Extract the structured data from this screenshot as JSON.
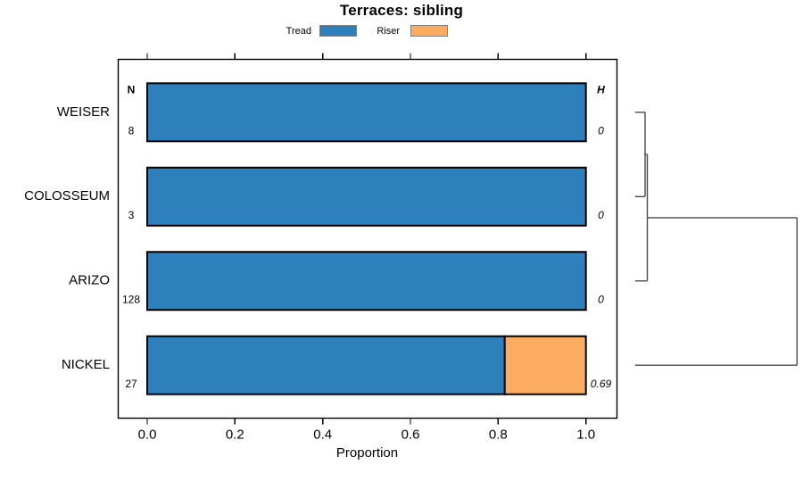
{
  "title": "Terraces: sibling",
  "legend": {
    "items": [
      {
        "label": "Tread",
        "color": "#2E80BC"
      },
      {
        "label": "Riser",
        "color": "#FBAC61"
      }
    ]
  },
  "chart_data": {
    "type": "bar",
    "orientation": "horizontal",
    "stacked": true,
    "title": "Terraces: sibling",
    "xlabel": "Proportion",
    "xlim": [
      0.0,
      1.0
    ],
    "x_ticks": [
      0.0,
      0.2,
      0.4,
      0.6,
      0.8,
      1.0
    ],
    "grid": "off",
    "legend_position": "top",
    "categories": [
      "WEISER",
      "COLOSSEUM",
      "ARIZO",
      "NICKEL"
    ],
    "series": [
      {
        "name": "Tread",
        "color": "#2E80BC",
        "values": [
          1.0,
          1.0,
          1.0,
          0.815
        ]
      },
      {
        "name": "Riser",
        "color": "#FBAC61",
        "values": [
          0.0,
          0.0,
          0.0,
          0.185
        ]
      }
    ],
    "n_label": "N",
    "n_values": [
      "8",
      "3",
      "128",
      "27"
    ],
    "h_label": "H",
    "h_values": [
      "0",
      "0",
      "0",
      "0.69"
    ],
    "dendrogram": {
      "side": "right",
      "leaf_order": [
        "WEISER",
        "COLOSSEUM",
        "ARIZO",
        "NICKEL"
      ],
      "merges": [
        {
          "children": [
            [
              "leaf",
              0
            ],
            [
              "leaf",
              1
            ]
          ],
          "height": 11.3
        },
        {
          "children": [
            [
              "merge",
              0
            ],
            [
              "leaf",
              2
            ]
          ],
          "height": 13.8
        },
        {
          "children": [
            [
              "merge",
              1
            ],
            [
              "leaf",
              3
            ]
          ],
          "height": 181.6
        }
      ]
    }
  }
}
